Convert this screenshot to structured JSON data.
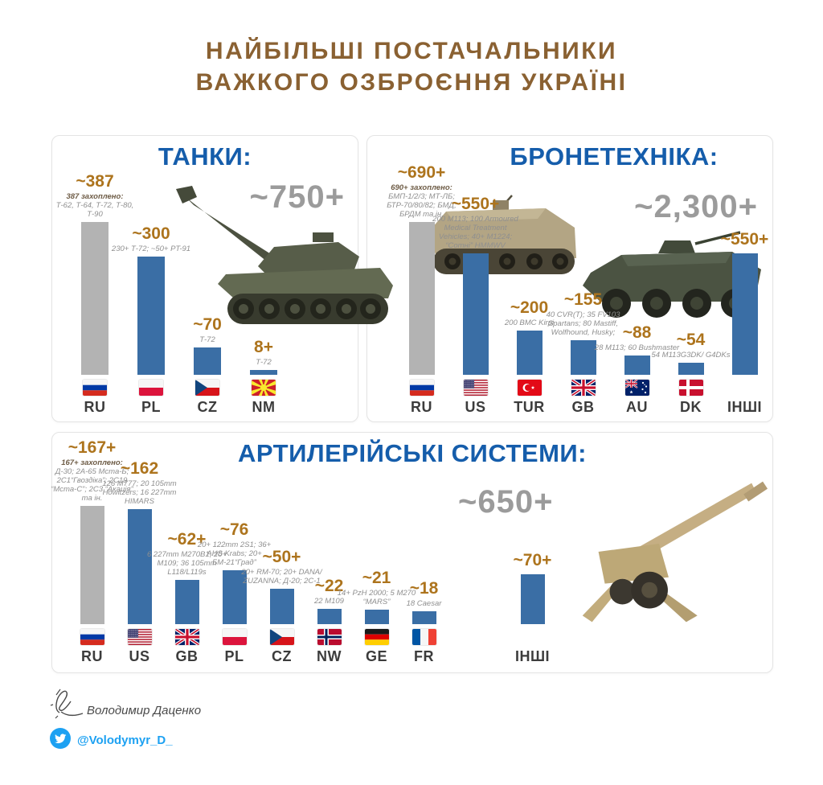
{
  "header": {
    "title_line1": "НАЙБІЛЬШІ ПОСТАЧАЛЬНИКИ",
    "title_line2": "ВАЖКОГО ОЗБРОЄННЯ УКРАЇНІ"
  },
  "colors": {
    "title_brown": "#8a6132",
    "value_orange": "#ad741d",
    "panel_title_blue": "#155dab",
    "total_gray": "#9b9b9b",
    "bar_blue": "#3a6ea5",
    "bar_gray": "#b3b3b3",
    "note_gray": "#8f8f8f",
    "twitter_blue": "#1da1f2"
  },
  "chart_data": [
    {
      "type": "bar",
      "title": "ТАНКИ:",
      "total": "~750+",
      "legend_position": "none",
      "grid": false,
      "categories": [
        "RU",
        "PL",
        "CZ",
        "NM"
      ],
      "values": [
        387,
        300,
        70,
        8
      ],
      "bars": [
        {
          "country": "RU",
          "flag": "ru",
          "value": 387,
          "value_label": "~387",
          "note_strong": "387 захоплено:",
          "note": "Т-62, Т-64, Т-72, Т-80, Т-90",
          "captured": true
        },
        {
          "country": "PL",
          "flag": "pl",
          "value": 300,
          "value_label": "~300",
          "note": "230+ Т-72; ~50+ PT-91",
          "captured": false
        },
        {
          "country": "CZ",
          "flag": "cz",
          "value": 70,
          "value_label": "~70",
          "note": "Т-72",
          "captured": false
        },
        {
          "country": "NM",
          "flag": "nm",
          "value": 8,
          "value_label": "8+",
          "note": "Т-72",
          "captured": false
        }
      ]
    },
    {
      "type": "bar",
      "title": "БРОНЕТЕХНІКА:",
      "total": "~2,300+",
      "legend_position": "none",
      "grid": false,
      "categories": [
        "RU",
        "US",
        "TUR",
        "GB",
        "AU",
        "DK",
        "ІНШІ"
      ],
      "values": [
        690,
        550,
        200,
        155,
        88,
        54,
        550
      ],
      "bars": [
        {
          "country": "RU",
          "flag": "ru",
          "value": 690,
          "value_label": "~690+",
          "note_strong": "690+ захоплено:",
          "note": "БМП-1/2/3; МТ-ЛБ; БТР-70/80/82; БМД; БРДМ та ін.",
          "captured": true
        },
        {
          "country": "US",
          "flag": "us",
          "value": 550,
          "value_label": "~550+",
          "note": "200 M113; 100 Armoured Medical Treatment Vehicles; 40+ M1224; “Сотні” HMMWV",
          "captured": false
        },
        {
          "country": "TUR",
          "flag": "tur",
          "value": 200,
          "value_label": "~200",
          "note": "200 BMC Kirpi",
          "captured": false
        },
        {
          "country": "GB",
          "flag": "gb",
          "value": 155,
          "value_label": "~155",
          "note": "40 CVR(T); 35 FV103 Spartans; 80 Mastiff, Wolfhound, Husky;",
          "captured": false
        },
        {
          "country": "AU",
          "flag": "au",
          "value": 88,
          "value_label": "~88",
          "note": "28 M113; 60 Bushmaster",
          "captured": false
        },
        {
          "country": "DK",
          "flag": "dk",
          "value": 54,
          "value_label": "~54",
          "note": "54 M113G3DK/ G4DKs",
          "captured": false
        },
        {
          "country": "ІНШІ",
          "flag": null,
          "value": 550,
          "value_label": "~550+",
          "note": "",
          "captured": false
        }
      ]
    },
    {
      "type": "bar",
      "title": "АРТИЛЕРІЙСЬКІ СИСТЕМИ:",
      "total": "~650+",
      "legend_position": "none",
      "grid": false,
      "categories": [
        "RU",
        "US",
        "GB",
        "PL",
        "CZ",
        "NW",
        "GE",
        "FR",
        "ІНШІ"
      ],
      "values": [
        167,
        162,
        62,
        76,
        50,
        22,
        21,
        18,
        70
      ],
      "bars": [
        {
          "country": "RU",
          "flag": "ru",
          "value": 167,
          "value_label": "~167+",
          "note_strong": "167+ захоплено:",
          "note": "Д-30; 2А-65 Мста-Б; 2С1“Гвоздіка”; 2С19 “Мста-С”; 2С3 “Акація” та ін.",
          "captured": true
        },
        {
          "country": "US",
          "flag": "us",
          "value": 162,
          "value_label": "~162",
          "note": "126 M777; 20 105mm Howitzers; 16 227mm HIMARS",
          "captured": false
        },
        {
          "country": "GB",
          "flag": "gb",
          "value": 62,
          "value_label": "~62+",
          "note": "6 227mm M270B1; 20+ M109; 36 105mm L118/L119s",
          "captured": false
        },
        {
          "country": "PL",
          "flag": "pl",
          "value": 76,
          "value_label": "~76",
          "note": "20+ 122mm 2S1; 36+ AHS Krabs; 20+ БМ-21“Град”",
          "captured": false
        },
        {
          "country": "CZ",
          "flag": "cz",
          "value": 50,
          "value_label": "~50+",
          "note": "20+ RM-70; 20+ DANA/ ZUZANNA; Д-20; 2С-1",
          "captured": false
        },
        {
          "country": "NW",
          "flag": "nw",
          "value": 22,
          "value_label": "~22",
          "note": "22 M109",
          "captured": false
        },
        {
          "country": "GE",
          "flag": "ge",
          "value": 21,
          "value_label": "~21",
          "note": "14+ PzH 2000; 5 M270 “MARS”",
          "captured": false
        },
        {
          "country": "FR",
          "flag": "fr",
          "value": 18,
          "value_label": "~18",
          "note": "18 Caesar",
          "captured": false
        },
        {
          "country": "ІНШІ",
          "flag": null,
          "value": 70,
          "value_label": "~70+",
          "note": "",
          "captured": false
        }
      ]
    }
  ],
  "footer": {
    "author": "Володимир Даценко",
    "handle": "@Volodymyr_D_"
  }
}
